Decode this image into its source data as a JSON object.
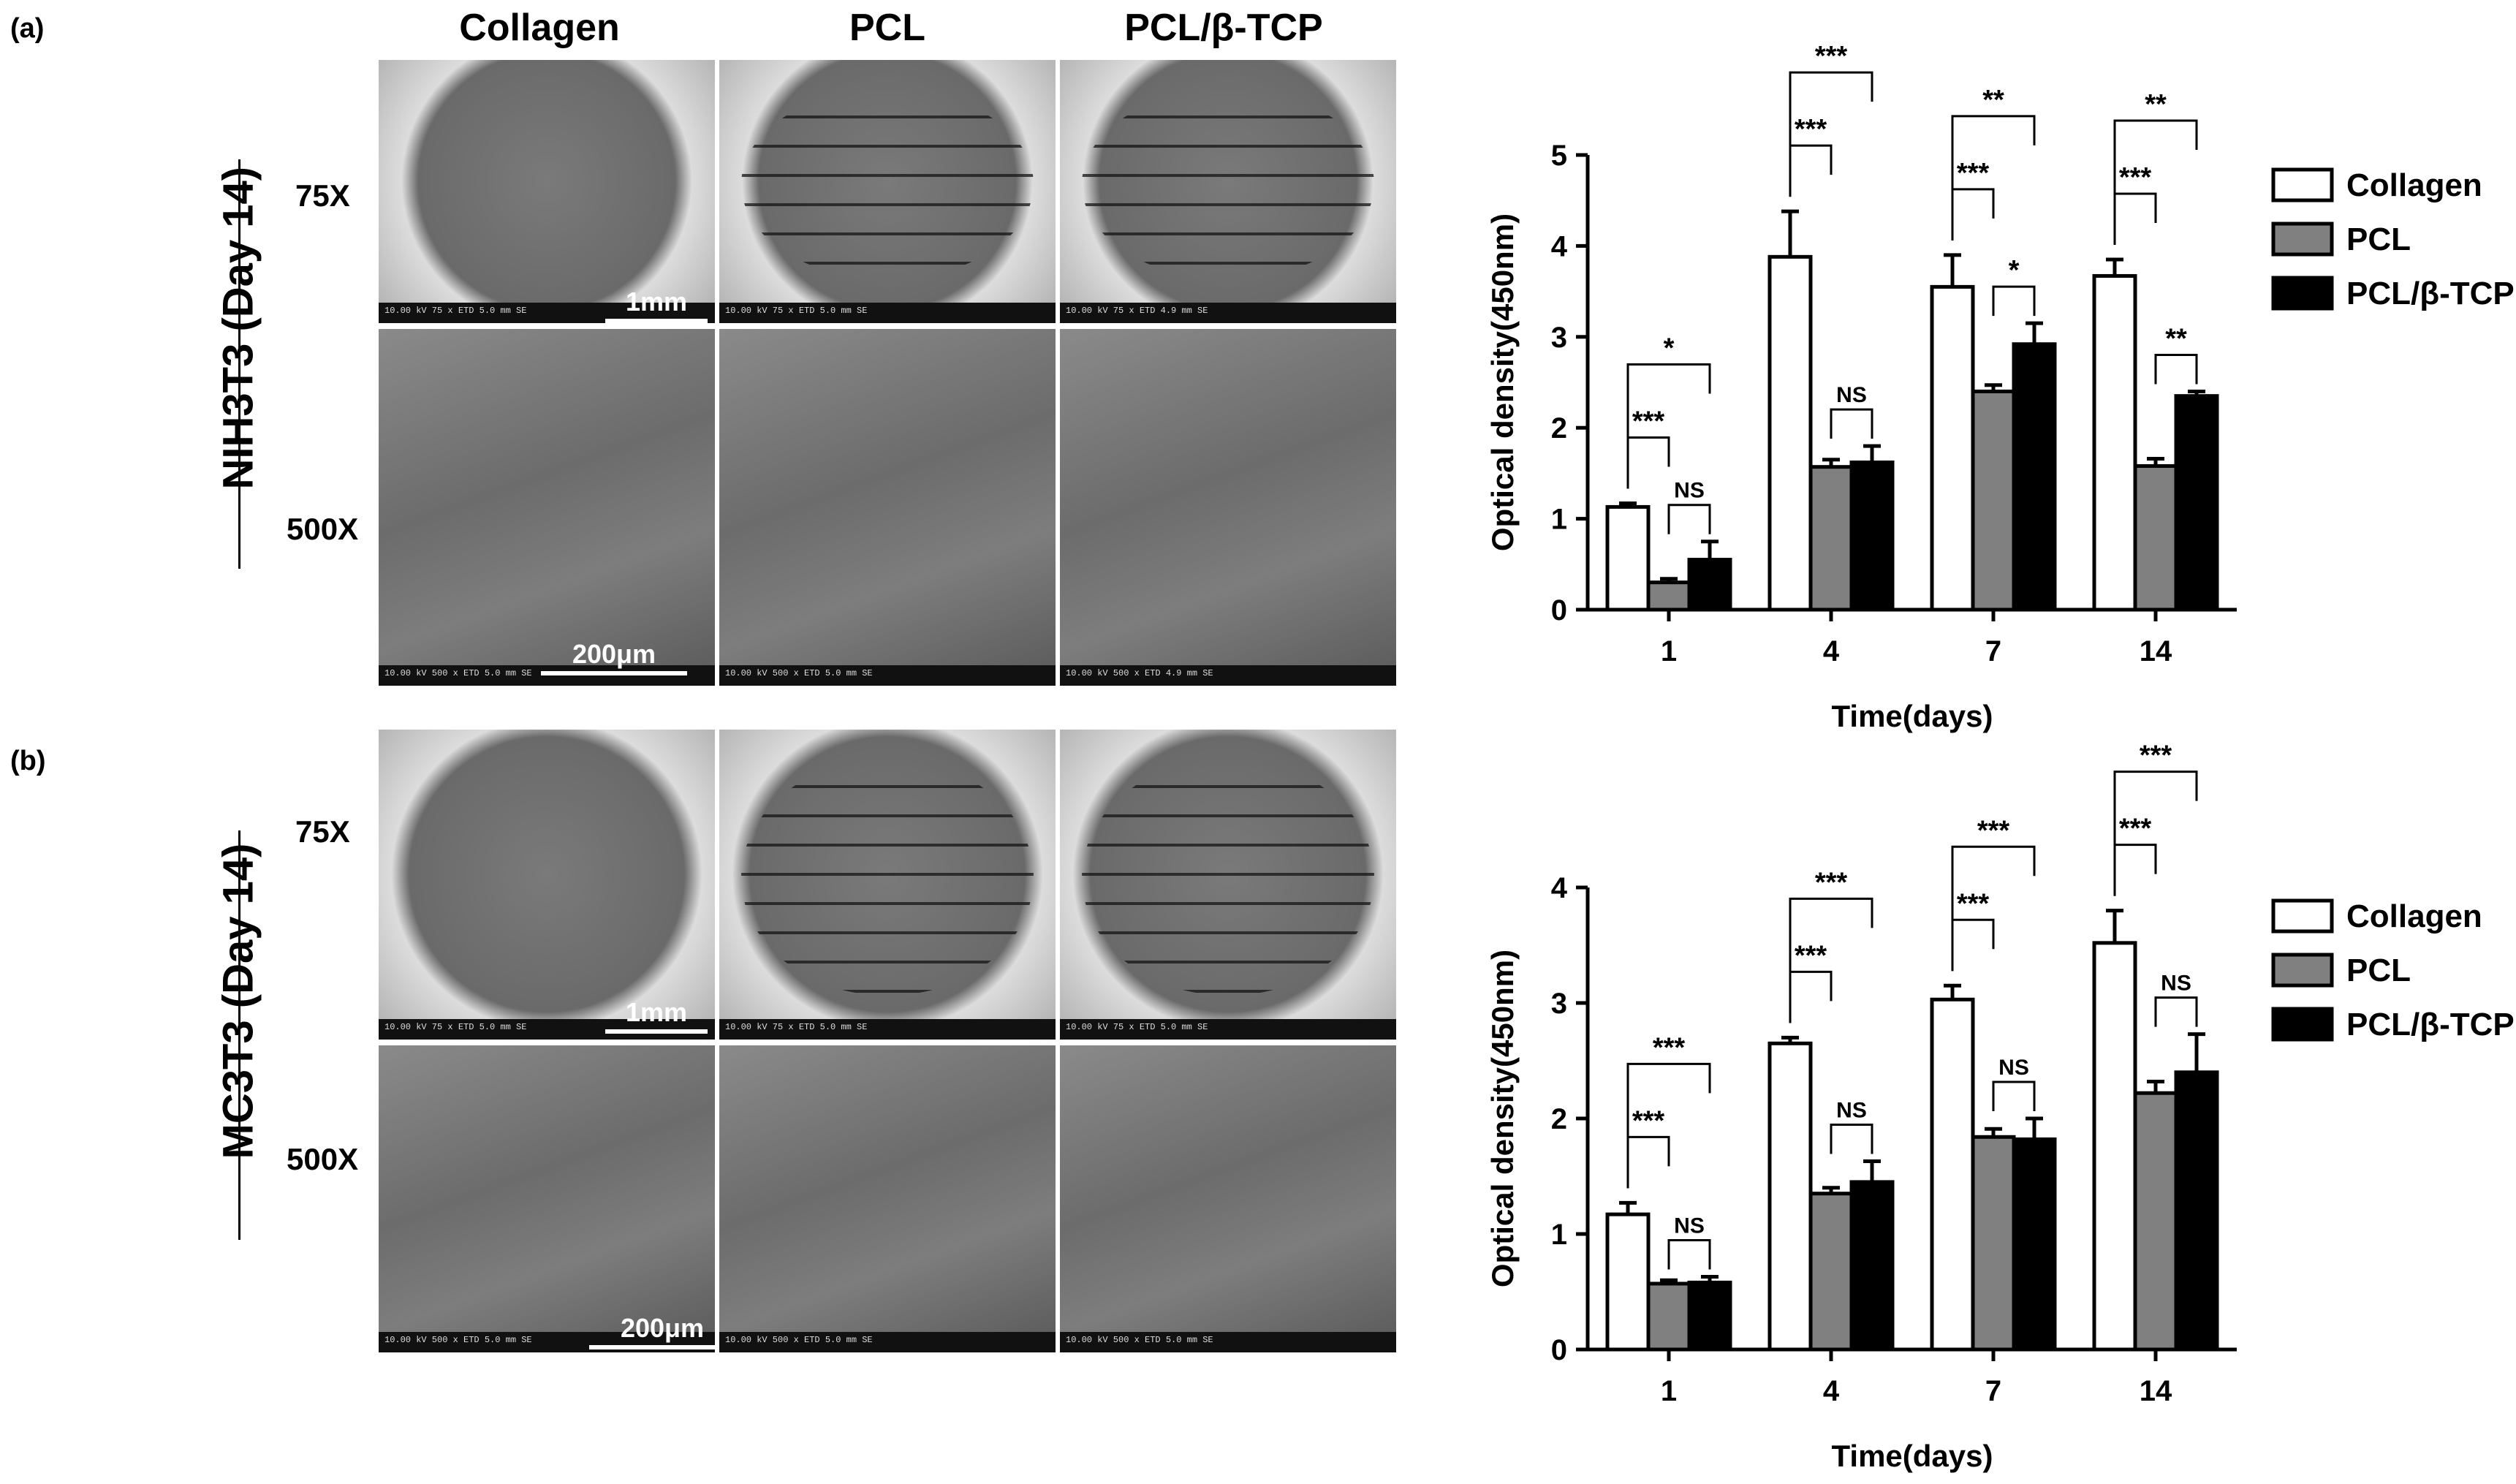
{
  "panels": [
    {
      "letter": "(a)",
      "row_label": "NIH3T3 (Day 14)",
      "columns": [
        "Collagen",
        "PCL",
        "PCL/β-TCP"
      ],
      "magnifications": [
        "75X",
        "500X"
      ],
      "scale_labels": [
        "1mm",
        "200μm"
      ]
    },
    {
      "letter": "(b)",
      "row_label": "MC3T3 (Day 14)",
      "magnifications": [
        "75X",
        "500X"
      ],
      "scale_labels": [
        "1mm",
        "200μm"
      ]
    }
  ],
  "colors": {
    "collagen": "#ffffff",
    "pcl": "#808080",
    "pcl_tcp": "#000000"
  },
  "chart_data": [
    {
      "type": "bar",
      "xlabel": "Time(days)",
      "ylabel": "Optical density(450nm)",
      "categories": [
        "1",
        "4",
        "7",
        "14"
      ],
      "ylim": [
        0,
        5
      ],
      "yticks": [
        "0",
        "1",
        "2",
        "3",
        "4",
        "5"
      ],
      "legend_position": "right",
      "series": [
        {
          "name": "Collagen",
          "values": [
            1.13,
            3.88,
            3.55,
            3.67
          ],
          "errors": [
            0.04,
            0.5,
            0.35,
            0.18
          ]
        },
        {
          "name": "PCL",
          "values": [
            0.3,
            1.57,
            2.4,
            1.58
          ],
          "errors": [
            0.04,
            0.08,
            0.07,
            0.08
          ]
        },
        {
          "name": "PCL/β-TCP",
          "values": [
            0.55,
            1.62,
            2.92,
            2.35
          ],
          "errors": [
            0.2,
            0.18,
            0.23,
            0.05
          ]
        }
      ],
      "annotations": [
        {
          "group": 0,
          "from": 0,
          "to": 1,
          "label": "***",
          "level": 1
        },
        {
          "group": 0,
          "from": 1,
          "to": 2,
          "label": "NS",
          "level": 0
        },
        {
          "group": 0,
          "from": 0,
          "to": 2,
          "label": "*",
          "level": 2
        },
        {
          "group": 1,
          "from": 0,
          "to": 1,
          "label": "***",
          "level": 1
        },
        {
          "group": 1,
          "from": 1,
          "to": 2,
          "label": "NS",
          "level": 0
        },
        {
          "group": 1,
          "from": 0,
          "to": 2,
          "label": "***",
          "level": 2
        },
        {
          "group": 2,
          "from": 0,
          "to": 1,
          "label": "***",
          "level": 1
        },
        {
          "group": 2,
          "from": 1,
          "to": 2,
          "label": "*",
          "level": 0
        },
        {
          "group": 2,
          "from": 0,
          "to": 2,
          "label": "**",
          "level": 2
        },
        {
          "group": 3,
          "from": 0,
          "to": 1,
          "label": "***",
          "level": 1
        },
        {
          "group": 3,
          "from": 1,
          "to": 2,
          "label": "**",
          "level": 0
        },
        {
          "group": 3,
          "from": 0,
          "to": 2,
          "label": "**",
          "level": 2
        }
      ]
    },
    {
      "type": "bar",
      "xlabel": "Time(days)",
      "ylabel": "Optical density(450nm)",
      "categories": [
        "1",
        "4",
        "7",
        "14"
      ],
      "ylim": [
        0,
        4
      ],
      "yticks": [
        "0",
        "1",
        "2",
        "3",
        "4"
      ],
      "legend_position": "right",
      "series": [
        {
          "name": "Collagen",
          "values": [
            1.17,
            2.65,
            3.03,
            3.52
          ],
          "errors": [
            0.1,
            0.05,
            0.12,
            0.28
          ]
        },
        {
          "name": "PCL",
          "values": [
            0.57,
            1.35,
            1.84,
            2.22
          ],
          "errors": [
            0.03,
            0.05,
            0.07,
            0.1
          ]
        },
        {
          "name": "PCL/β-TCP",
          "values": [
            0.58,
            1.45,
            1.82,
            2.4
          ],
          "errors": [
            0.05,
            0.18,
            0.18,
            0.33
          ]
        }
      ],
      "annotations": [
        {
          "group": 0,
          "from": 0,
          "to": 1,
          "label": "***",
          "level": 1
        },
        {
          "group": 0,
          "from": 1,
          "to": 2,
          "label": "NS",
          "level": 0
        },
        {
          "group": 0,
          "from": 0,
          "to": 2,
          "label": "***",
          "level": 2
        },
        {
          "group": 1,
          "from": 0,
          "to": 1,
          "label": "***",
          "level": 1
        },
        {
          "group": 1,
          "from": 1,
          "to": 2,
          "label": "NS",
          "level": 0
        },
        {
          "group": 1,
          "from": 0,
          "to": 2,
          "label": "***",
          "level": 2
        },
        {
          "group": 2,
          "from": 0,
          "to": 1,
          "label": "***",
          "level": 1
        },
        {
          "group": 2,
          "from": 1,
          "to": 2,
          "label": "NS",
          "level": 0
        },
        {
          "group": 2,
          "from": 0,
          "to": 2,
          "label": "***",
          "level": 2
        },
        {
          "group": 3,
          "from": 0,
          "to": 1,
          "label": "***",
          "level": 1
        },
        {
          "group": 3,
          "from": 1,
          "to": 2,
          "label": "NS",
          "level": 0
        },
        {
          "group": 3,
          "from": 0,
          "to": 2,
          "label": "***",
          "level": 2
        }
      ]
    }
  ]
}
